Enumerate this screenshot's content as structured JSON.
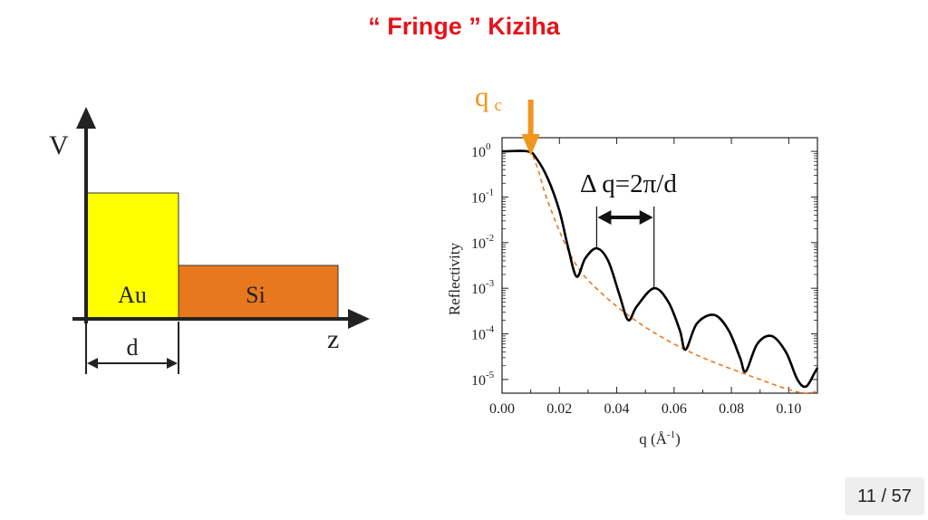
{
  "slide": {
    "title": "“ Fringe ” Kiziha"
  },
  "left_diagram": {
    "v_axis_label": "V",
    "z_axis_label": "z",
    "layer_au": {
      "label": "Au",
      "color": "#ffff00"
    },
    "layer_si": {
      "label": "Si",
      "color": "#e8781e"
    },
    "thickness_label": "d"
  },
  "chart_data": {
    "type": "line",
    "xlabel_base": "q (Å",
    "xlabel_sup": "-1",
    "xlabel_close": ")",
    "ylabel": "Reflectivity",
    "xlim": [
      0.0,
      0.11
    ],
    "ylim_log10": [
      -5.3,
      0.3
    ],
    "y_scale": "log",
    "x_ticks": [
      0.0,
      0.02,
      0.04,
      0.06,
      0.08,
      0.1
    ],
    "x_tick_labels": [
      "0.00",
      "0.02",
      "0.04",
      "0.06",
      "0.08",
      "0.10"
    ],
    "y_tick_exponents": [
      "0",
      "-1",
      "-2",
      "-3",
      "-4",
      "-5"
    ],
    "y_tick_base": "10",
    "series": [
      {
        "style": "solid",
        "color": "#000000",
        "points": [
          [
            0.0,
            1.0
          ],
          [
            0.009,
            1.0
          ],
          [
            0.012,
            0.7
          ],
          [
            0.016,
            0.25
          ],
          [
            0.02,
            0.05
          ],
          [
            0.023,
            0.008
          ],
          [
            0.026,
            0.0018
          ],
          [
            0.029,
            0.0045
          ],
          [
            0.033,
            0.0075
          ],
          [
            0.037,
            0.004
          ],
          [
            0.041,
            0.0007
          ],
          [
            0.044,
            0.0002
          ],
          [
            0.047,
            0.0004
          ],
          [
            0.053,
            0.001
          ],
          [
            0.058,
            0.0005
          ],
          [
            0.062,
            0.00012
          ],
          [
            0.064,
            4.5e-05
          ],
          [
            0.068,
            0.00017
          ],
          [
            0.074,
            0.00026
          ],
          [
            0.079,
            0.00012
          ],
          [
            0.083,
            3e-05
          ],
          [
            0.085,
            1.5e-05
          ],
          [
            0.089,
            6e-05
          ],
          [
            0.094,
            9e-05
          ],
          [
            0.099,
            4e-05
          ],
          [
            0.103,
            1e-05
          ],
          [
            0.106,
            7e-06
          ],
          [
            0.109,
            1.4e-05
          ],
          [
            0.11,
            1.8e-05
          ]
        ]
      },
      {
        "style": "dashed",
        "color": "#e8781e",
        "points": [
          [
            0.0,
            1.0
          ],
          [
            0.009,
            1.0
          ],
          [
            0.012,
            0.5
          ],
          [
            0.015,
            0.12
          ],
          [
            0.02,
            0.018
          ],
          [
            0.025,
            0.004
          ],
          [
            0.03,
            0.0015
          ],
          [
            0.04,
            0.0004
          ],
          [
            0.05,
            0.00014
          ],
          [
            0.06,
            6e-05
          ],
          [
            0.07,
            3e-05
          ],
          [
            0.08,
            1.7e-05
          ],
          [
            0.09,
            1e-05
          ],
          [
            0.1,
            6e-06
          ],
          [
            0.106,
            5e-06
          ],
          [
            0.11,
            5.5e-06
          ]
        ]
      }
    ],
    "annotations": {
      "qc_label_main": "q",
      "qc_label_sub": "c",
      "qc_x": 0.01,
      "qc_color": "#f0961e",
      "delta_q_label": "Δ q=2π/d",
      "delta_q_from_x": 0.033,
      "delta_q_to_x": 0.053
    }
  },
  "pager": {
    "text": "11 / 57"
  }
}
